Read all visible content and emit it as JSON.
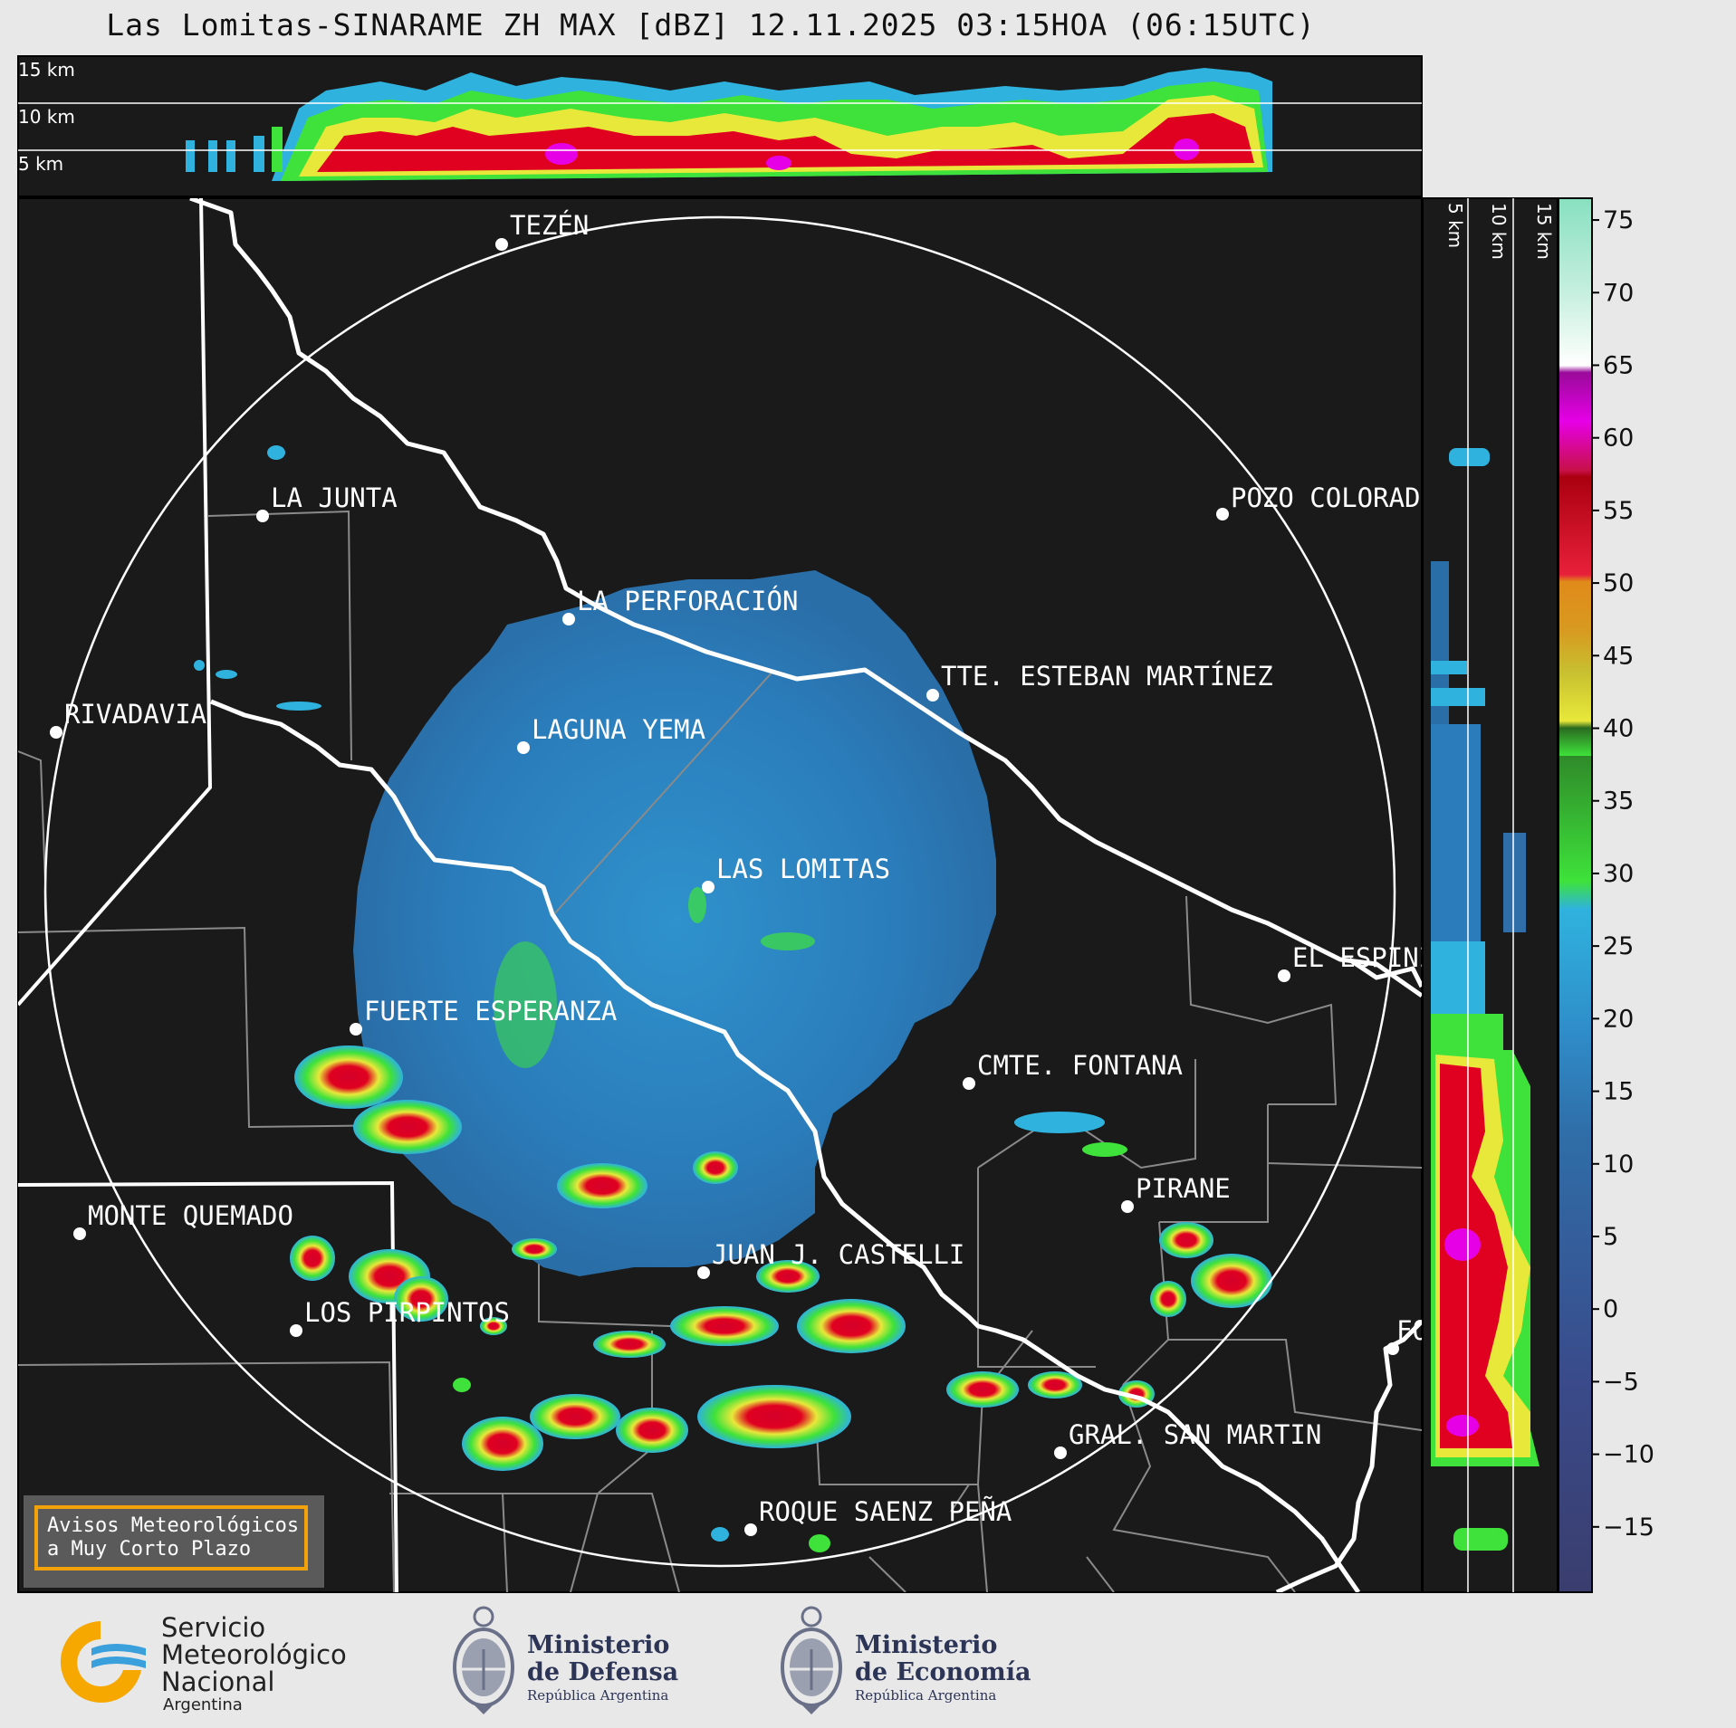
{
  "title": "Las Lomitas-SINARAME ZH MAX [dBZ] 12.11.2025 03:15HOA (06:15UTC)",
  "top_panel": {
    "altitude_labels": [
      "15 km",
      "10 km",
      "5 km"
    ]
  },
  "side_panel": {
    "altitude_labels": [
      "5 km",
      "10 km",
      "15 km"
    ]
  },
  "cities": [
    {
      "name": "TEZÉN"
    },
    {
      "name": "LA JUNTA"
    },
    {
      "name": "POZO COLORADO"
    },
    {
      "name": "LA PERFORACIÓN"
    },
    {
      "name": "TTE. ESTEBAN MARTÍNEZ"
    },
    {
      "name": "RIVADAVIA"
    },
    {
      "name": "LAGUNA YEMA"
    },
    {
      "name": "LAS LOMITAS"
    },
    {
      "name": "EL ESPINILLO"
    },
    {
      "name": "FUERTE ESPERANZA"
    },
    {
      "name": "CMTE. FONTANA"
    },
    {
      "name": "PIRANE"
    },
    {
      "name": "MONTE QUEMADO"
    },
    {
      "name": "JUAN J. CASTELLI"
    },
    {
      "name": "LOS PIRPINTOS"
    },
    {
      "name": "GRAL. SAN MARTIN"
    },
    {
      "name": "ROQUE SAENZ PEÑA"
    },
    {
      "name": "FORMOSA"
    }
  ],
  "colorbar": {
    "unit": "dBZ",
    "ticks": [
      "75",
      "70",
      "65",
      "60",
      "55",
      "50",
      "45",
      "40",
      "35",
      "30",
      "25",
      "20",
      "15",
      "10",
      "5",
      "0",
      "−5",
      "−10",
      "−15"
    ],
    "range": [
      -19.5,
      76.5
    ],
    "colors": {
      "blue_low": "#3a4a8a",
      "blue": "#2f8cc8",
      "cyan": "#2fb2de",
      "green": "#3ee23a",
      "yellow": "#e8e83a",
      "orange": "#e08a1a",
      "red": "#d4002a",
      "magenta": "#e600e6",
      "white": "#ffffff",
      "mint": "#88e0c0"
    }
  },
  "alert_box": {
    "line1": "Avisos Meteorológicos",
    "line2": "a Muy Corto Plazo"
  },
  "footer": {
    "smn": {
      "line1": "Servicio",
      "line2": "Meteorológico",
      "line3": "Nacional",
      "country": "Argentina"
    },
    "defensa": {
      "line1": "Ministerio",
      "line2": "de Defensa",
      "sub": "República Argentina"
    },
    "economia": {
      "line1": "Ministerio",
      "line2": "de Economía",
      "sub": "República Argentina"
    }
  }
}
